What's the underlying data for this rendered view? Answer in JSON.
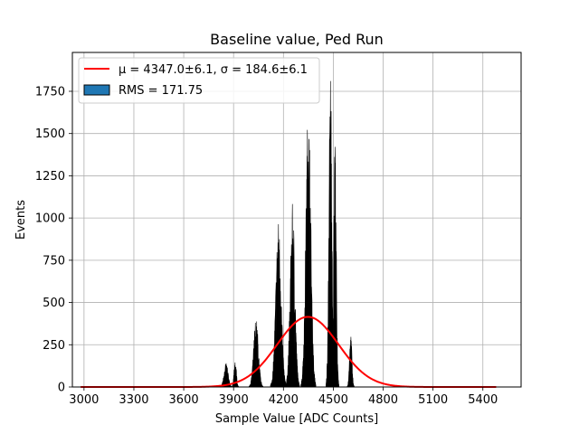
{
  "chart_data": {
    "type": "histogram",
    "title": "Baseline value, Ped Run",
    "xlabel": "Sample Value [ADC Counts]",
    "ylabel": "Events",
    "xlim": [
      2930,
      5630
    ],
    "ylim": [
      0,
      1980
    ],
    "xticks": [
      3000,
      3300,
      3600,
      3900,
      4200,
      4500,
      4800,
      5100,
      5400
    ],
    "yticks": [
      0,
      250,
      500,
      750,
      1000,
      1250,
      1500,
      1750
    ],
    "grid": true,
    "legend_position": "upper-left",
    "legend": [
      {
        "label": "μ = 4347.0±6.1, σ = 184.6±6.1",
        "kind": "line",
        "color": "#ff0000"
      },
      {
        "label": "RMS = 171.75",
        "kind": "patch",
        "color": "#1f77b4"
      }
    ],
    "histogram": {
      "color": "#000000",
      "clusters": [
        {
          "center": 3855,
          "width": 12,
          "peak": 115
        },
        {
          "center": 3910,
          "width": 7,
          "peak": 130
        },
        {
          "center": 4035,
          "width": 14,
          "peak": 330
        },
        {
          "center": 4170,
          "width": 16,
          "peak": 790
        },
        {
          "center": 4255,
          "width": 14,
          "peak": 870
        },
        {
          "center": 4350,
          "width": 15,
          "peak": 1340
        },
        {
          "center": 4483,
          "width": 9,
          "peak": 1520
        },
        {
          "center": 4510,
          "width": 8,
          "peak": 1150
        },
        {
          "center": 4605,
          "width": 7,
          "peak": 260
        }
      ]
    },
    "fit": {
      "name": "Gaussian fit",
      "color": "#ff0000",
      "mu": 4347.0,
      "sigma": 184.6,
      "amplitude": 415,
      "x_range": [
        2980,
        5480
      ]
    }
  }
}
